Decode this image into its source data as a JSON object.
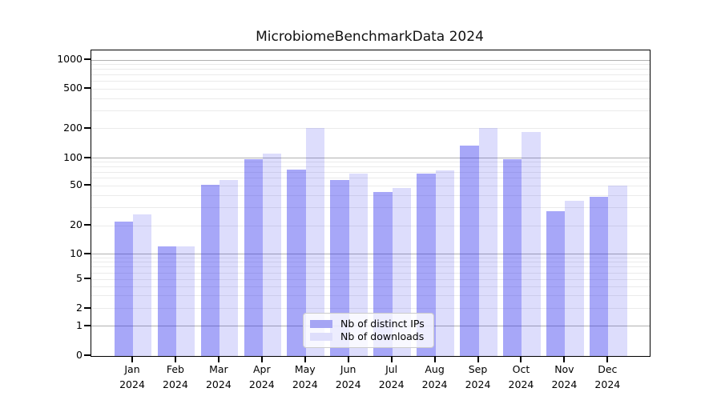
{
  "title": "MicrobiomeBenchmarkData 2024",
  "chart_data": {
    "type": "bar",
    "title": "MicrobiomeBenchmarkData 2024",
    "categories": [
      "Jan",
      "Feb",
      "Mar",
      "Apr",
      "May",
      "Jun",
      "Jul",
      "Aug",
      "Sep",
      "Oct",
      "Nov",
      "Dec"
    ],
    "category_year": "2024",
    "series": [
      {
        "name": "Nb of distinct IPs",
        "color": "#a5a5f4",
        "values": [
          22,
          12,
          51,
          97,
          75,
          58,
          43,
          68,
          135,
          98,
          28,
          39
        ]
      },
      {
        "name": "Nb of downloads",
        "color": "#dedefb",
        "values": [
          26,
          12,
          58,
          112,
          202,
          68,
          47,
          74,
          205,
          184,
          35,
          50
        ]
      }
    ],
    "yscale": "symlog",
    "y_ticks": [
      0,
      1,
      2,
      5,
      10,
      20,
      50,
      100,
      200,
      500,
      1000
    ],
    "y_minor_gridlines": [
      2,
      3,
      4,
      5,
      6,
      7,
      8,
      9,
      20,
      30,
      40,
      50,
      60,
      70,
      80,
      90,
      200,
      300,
      400,
      500,
      600,
      700,
      800,
      900
    ],
    "y_major_gridlines": [
      1,
      10,
      100,
      1000
    ],
    "ylim": [
      0,
      1250
    ],
    "xlabel": "",
    "ylabel": "",
    "grid": "horizontal",
    "legend_position": "lower center",
    "colors": {
      "bar_dark": "#a5a5f4",
      "bar_light": "#dedefb",
      "major_grid": "#b0b0b0",
      "minor_grid": "#ebebeb",
      "axis": "#000000"
    }
  }
}
